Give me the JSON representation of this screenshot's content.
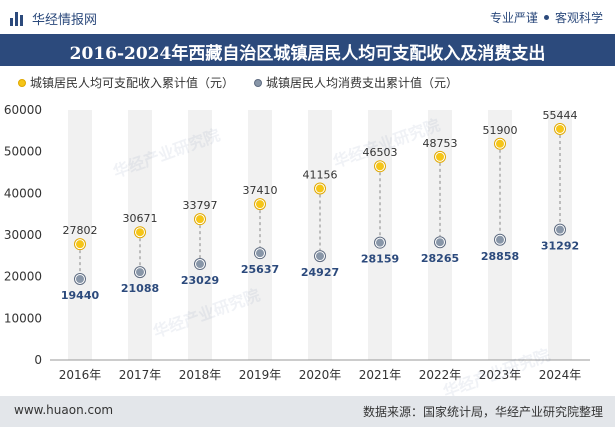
{
  "header": {
    "brand": "华经情报网",
    "tagline_1": "专业严谨",
    "tagline_2": "客观科学"
  },
  "footer": {
    "website": "www.huaon.com",
    "source": "数据来源：国家统计局，华经产业研究院整理"
  },
  "watermark": "华经产业研究院",
  "colors": {
    "primary": "#2c4a7c",
    "series_a": "#f5c518",
    "series_b": "#8896a8"
  },
  "chart_data": {
    "type": "scatter",
    "title": "2016-2024年西藏自治区城镇居民人均可支配收入及消费支出",
    "categories": [
      "2016年",
      "2017年",
      "2018年",
      "2019年",
      "2020年",
      "2021年",
      "2022年",
      "2023年",
      "2024年"
    ],
    "series": [
      {
        "name": "城镇居民人均可支配收入累计值（元）",
        "values": [
          27802,
          30671,
          33797,
          37410,
          41156,
          46503,
          48753,
          51900,
          55444
        ]
      },
      {
        "name": "城镇居民人均消费支出累计值（元）",
        "values": [
          19440,
          21088,
          23029,
          25637,
          24927,
          28159,
          28265,
          28858,
          31292
        ]
      }
    ],
    "y_ticks": [
      "0",
      "10000",
      "20000",
      "30000",
      "40000",
      "50000",
      "60000"
    ],
    "ylim": [
      0,
      60000
    ],
    "grid": false,
    "legend_position": "top-left"
  }
}
